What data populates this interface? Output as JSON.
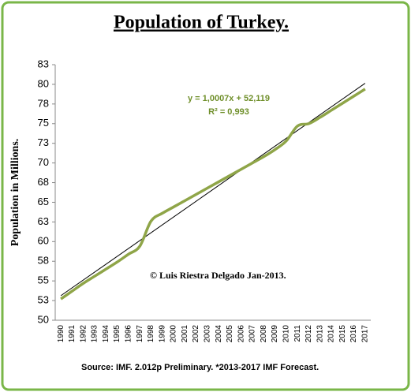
{
  "chart_data": {
    "type": "line",
    "title": "Population of Turkey.",
    "y_label": "Population in Millions.",
    "categories": [
      "1990",
      "1991",
      "1992",
      "1993",
      "1994",
      "1995",
      "1996",
      "1997",
      "1998",
      "1999",
      "2000",
      "2001",
      "2002",
      "2003",
      "2004",
      "2005",
      "2006",
      "2007",
      "2008",
      "2009",
      "2010",
      "2011",
      "2012",
      "2013",
      "2014",
      "2015",
      "2016",
      "2017"
    ],
    "series": [
      {
        "name": "Population",
        "color": "#8fa548",
        "values": [
          52.7,
          53.7,
          54.7,
          55.6,
          56.5,
          57.4,
          58.4,
          59.4,
          62.6,
          63.6,
          64.4,
          65.2,
          66.0,
          66.8,
          67.6,
          68.4,
          69.2,
          70.0,
          70.8,
          71.7,
          72.8,
          74.7,
          75.0,
          75.8,
          76.7,
          77.6,
          78.5,
          79.4
        ]
      }
    ],
    "trendline": {
      "slope": 1.0007,
      "intercept": 52.119,
      "color": "#000000",
      "equation": "y = 1,0007x + 52,119",
      "r2": "R² = 0,993"
    },
    "ylim": [
      50,
      82.5
    ],
    "yticks": [
      50,
      {
        "value": 52.5,
        "label": "53"
      },
      55,
      {
        "value": 57.5,
        "label": "58"
      },
      60,
      {
        "value": 62.5,
        "label": "63"
      },
      65,
      {
        "value": 67.5,
        "label": "68"
      },
      70,
      {
        "value": 72.5,
        "label": "73"
      },
      75,
      {
        "value": 77.5,
        "label": "78"
      },
      80,
      {
        "value": 82.5,
        "label": "83"
      }
    ],
    "grid": false,
    "annotations": [
      "© Luis Riestra  Delgado Jan-2013.",
      "Source: IMF. 2.012p  Preliminary. *2013-2017  IMF Forecast."
    ]
  }
}
